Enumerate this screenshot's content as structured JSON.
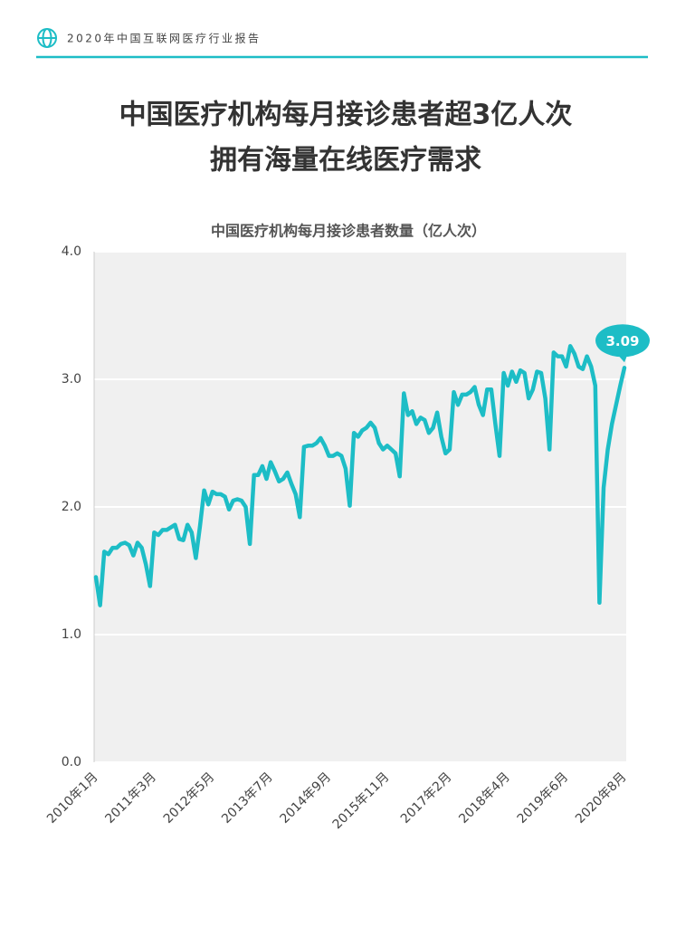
{
  "header": {
    "text": "2020年中国互联网医疗行业报告"
  },
  "headline": [
    "中国医疗机构每月接诊患者超3亿人次",
    "拥有海量在线医疗需求"
  ],
  "chart_data": {
    "type": "line",
    "title": "中国医疗机构每月接诊患者数量（亿人次）",
    "categories": [
      "2010年1月",
      null,
      null,
      null,
      null,
      null,
      null,
      null,
      null,
      null,
      null,
      null,
      null,
      null,
      "2011年3月",
      null,
      null,
      null,
      null,
      null,
      null,
      null,
      null,
      null,
      null,
      null,
      null,
      null,
      "2012年5月",
      null,
      null,
      null,
      null,
      null,
      null,
      null,
      null,
      null,
      null,
      null,
      null,
      null,
      "2013年7月",
      null,
      null,
      null,
      null,
      null,
      null,
      null,
      null,
      null,
      null,
      null,
      null,
      null,
      "2014年9月",
      null,
      null,
      null,
      null,
      null,
      null,
      null,
      null,
      null,
      null,
      null,
      null,
      null,
      "2015年11月",
      null,
      null,
      null,
      null,
      null,
      null,
      null,
      null,
      null,
      null,
      null,
      null,
      null,
      null,
      "2017年2月",
      null,
      null,
      null,
      null,
      null,
      null,
      null,
      null,
      null,
      null,
      null,
      null,
      null,
      "2018年4月",
      null,
      null,
      null,
      null,
      null,
      null,
      null,
      null,
      null,
      null,
      null,
      null,
      null,
      "2019年6月",
      null,
      null,
      null,
      null,
      null,
      null,
      null,
      null,
      null,
      null,
      null,
      null,
      null,
      "2020年8月"
    ],
    "series": [
      {
        "color": "#1dbdc6",
        "values": [
          1.45,
          1.23,
          1.65,
          1.63,
          1.68,
          1.68,
          1.71,
          1.72,
          1.7,
          1.62,
          1.72,
          1.68,
          1.55,
          1.38,
          1.8,
          1.78,
          1.82,
          1.82,
          1.84,
          1.86,
          1.75,
          1.74,
          1.86,
          1.8,
          1.6,
          1.85,
          2.13,
          2.02,
          2.12,
          2.1,
          2.1,
          2.08,
          1.98,
          2.05,
          2.06,
          2.05,
          2.0,
          1.71,
          2.25,
          2.25,
          2.32,
          2.22,
          2.35,
          2.28,
          2.2,
          2.22,
          2.27,
          2.18,
          2.1,
          1.92,
          2.47,
          2.48,
          2.48,
          2.5,
          2.54,
          2.48,
          2.4,
          2.4,
          2.42,
          2.4,
          2.3,
          2.01,
          2.58,
          2.55,
          2.6,
          2.62,
          2.66,
          2.62,
          2.5,
          2.45,
          2.48,
          2.45,
          2.42,
          2.24,
          2.89,
          2.72,
          2.75,
          2.65,
          2.7,
          2.68,
          2.58,
          2.62,
          2.74,
          2.55,
          2.42,
          2.45,
          2.9,
          2.8,
          2.88,
          2.88,
          2.9,
          2.94,
          2.8,
          2.72,
          2.92,
          2.92,
          2.65,
          2.4,
          3.05,
          2.95,
          3.06,
          2.98,
          3.07,
          3.05,
          2.85,
          2.92,
          3.06,
          3.05,
          2.85,
          2.45,
          3.21,
          3.18,
          3.18,
          3.1,
          3.26,
          3.2,
          3.1,
          3.08,
          3.18,
          3.1,
          2.95,
          1.25,
          2.15,
          2.45,
          2.65,
          2.8,
          2.95,
          3.09
        ]
      }
    ],
    "ylim": [
      0,
      4
    ],
    "yticks": [
      {
        "value": 0,
        "label": "0.0"
      },
      {
        "value": 1,
        "label": "1.0"
      },
      {
        "value": 2,
        "label": "2.0"
      },
      {
        "value": 3,
        "label": "3.0"
      },
      {
        "value": 4,
        "label": "4.0"
      }
    ],
    "grid": true
  }
}
